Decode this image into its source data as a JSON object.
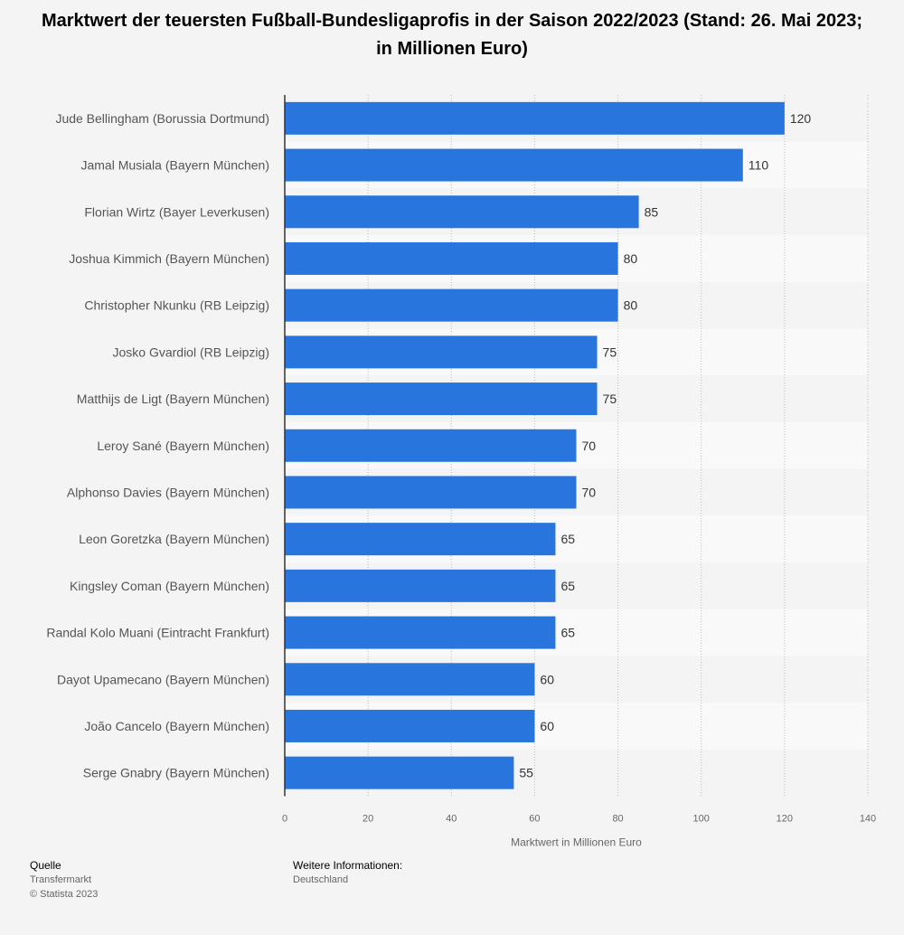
{
  "chart_data": {
    "type": "bar",
    "orientation": "horizontal",
    "title": "Marktwert der teuersten Fußball-Bundesligaprofis in der Saison 2022/2023 (Stand: 26. Mai 2023; in Millionen Euro)",
    "xlabel": "Marktwert in Millionen Euro",
    "ylabel": "",
    "xlim": [
      0,
      140
    ],
    "x_ticks": [
      "0",
      "20",
      "40",
      "60",
      "80",
      "100",
      "120",
      "140"
    ],
    "x_tick_values": [
      0,
      20,
      40,
      60,
      80,
      100,
      120,
      140
    ],
    "grid": true,
    "bar_color": "#2876dd",
    "categories": [
      "Jude Bellingham (Borussia Dortmund)",
      "Jamal Musiala (Bayern München)",
      "Florian Wirtz (Bayer Leverkusen)",
      "Joshua Kimmich (Bayern München)",
      "Christopher Nkunku (RB Leipzig)",
      "Josko Gvardiol (RB Leipzig)",
      "Matthijs de Ligt (Bayern München)",
      "Leroy Sané (Bayern München)",
      "Alphonso Davies (Bayern München)",
      "Leon Goretzka (Bayern München)",
      "Kingsley Coman (Bayern München)",
      "Randal Kolo Muani (Eintracht Frankfurt)",
      "Dayot Upamecano (Bayern München)",
      "João Cancelo (Bayern München)",
      "Serge Gnabry (Bayern München)"
    ],
    "values": [
      120,
      110,
      85,
      80,
      80,
      75,
      75,
      70,
      70,
      65,
      65,
      65,
      60,
      60,
      55
    ],
    "data_labels": [
      "120",
      "110",
      "85",
      "80",
      "80",
      "75",
      "75",
      "70",
      "70",
      "65",
      "65",
      "65",
      "60",
      "60",
      "55"
    ]
  },
  "footer": {
    "source_heading": "Quelle",
    "source_name": "Transfermarkt",
    "copyright": "© Statista 2023",
    "info_heading": "Weitere Informationen:",
    "info_region": "Deutschland"
  }
}
